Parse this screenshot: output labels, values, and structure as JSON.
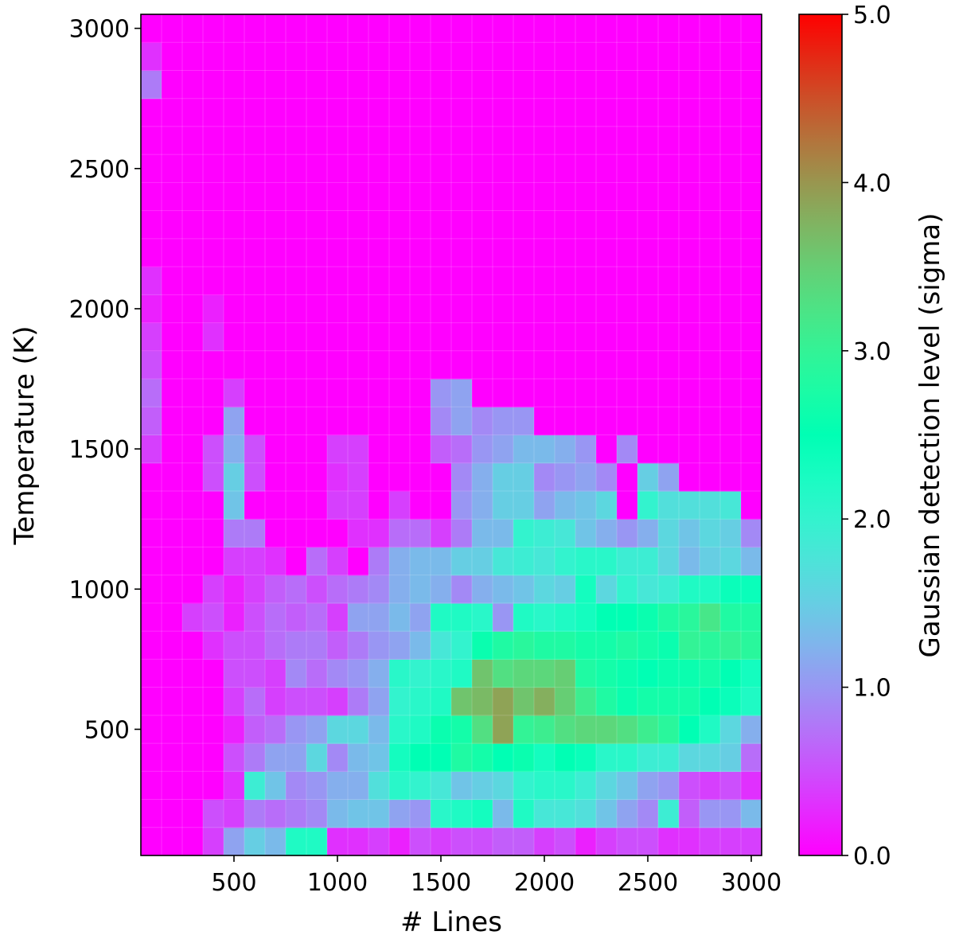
{
  "chart_data": {
    "type": "heatmap",
    "title": "",
    "xlabel": "# Lines",
    "ylabel": "Temperature (K)",
    "colorbar_label": "Gaussian detection level  (sigma)",
    "xlim": [
      50,
      3050
    ],
    "ylim": [
      50,
      3050
    ],
    "x_ticks": [
      500,
      1000,
      1500,
      2000,
      2500,
      3000
    ],
    "y_ticks": [
      500,
      1000,
      1500,
      2000,
      2500,
      3000
    ],
    "x_tick_labels": [
      "500",
      "1000",
      "1500",
      "2000",
      "2500",
      "3000"
    ],
    "y_tick_labels": [
      "500",
      "1000",
      "1500",
      "2000",
      "2500",
      "3000"
    ],
    "colorbar_range": [
      0.0,
      5.0
    ],
    "colorbar_ticks": [
      0.0,
      1.0,
      2.0,
      3.0,
      4.0,
      5.0
    ],
    "colorbar_tick_labels": [
      "0.0",
      "1.0",
      "2.0",
      "3.0",
      "4.0",
      "5.0"
    ],
    "colormap": "rainbow",
    "grid": true,
    "x_bins": [
      100,
      200,
      300,
      400,
      500,
      600,
      700,
      800,
      900,
      1000,
      1100,
      1200,
      1300,
      1400,
      1500,
      1600,
      1700,
      1800,
      1900,
      2000,
      2100,
      2200,
      2300,
      2400,
      2500,
      2600,
      2700,
      2800,
      2900,
      3000
    ],
    "y_bins": [
      100,
      200,
      300,
      400,
      500,
      600,
      700,
      800,
      900,
      1000,
      1100,
      1200,
      1300,
      1400,
      1500,
      1600,
      1700,
      1800,
      1900,
      2000,
      2100,
      2200,
      2300,
      2400,
      2500,
      2600,
      2700,
      2800,
      2900,
      3000
    ],
    "values": [
      [
        0.0,
        0.0,
        0.0,
        0.4,
        1.1,
        1.5,
        1.3,
        2.2,
        2.2,
        0.3,
        0.3,
        0.4,
        0.2,
        0.5,
        0.4,
        0.5,
        0.5,
        0.6,
        0.6,
        0.4,
        0.5,
        0.2,
        0.4,
        0.5,
        0.5,
        0.3,
        0.3,
        0.4,
        0.4,
        0.4
      ],
      [
        0.0,
        0.0,
        0.0,
        0.5,
        0.4,
        0.8,
        0.7,
        0.8,
        0.9,
        1.3,
        1.4,
        1.4,
        1.1,
        1.0,
        2.1,
        2.2,
        2.3,
        1.3,
        2.2,
        1.8,
        1.8,
        1.7,
        1.4,
        1.1,
        0.9,
        1.9,
        0.6,
        1.0,
        1.0,
        1.3
      ],
      [
        0.0,
        0.0,
        0.0,
        0.0,
        0.3,
        1.9,
        1.4,
        0.9,
        1.0,
        1.2,
        1.2,
        1.7,
        2.1,
        2.0,
        1.8,
        1.4,
        1.5,
        1.6,
        2.0,
        2.1,
        2.1,
        1.9,
        1.6,
        1.4,
        1.1,
        1.0,
        0.5,
        0.4,
        0.5,
        0.3
      ],
      [
        0.0,
        0.0,
        0.0,
        0.0,
        0.5,
        0.8,
        1.1,
        1.1,
        1.6,
        0.9,
        1.3,
        1.4,
        2.3,
        2.5,
        2.5,
        2.8,
        2.7,
        2.5,
        2.6,
        2.3,
        2.5,
        2.4,
        2.1,
        2.1,
        1.9,
        1.9,
        1.6,
        1.6,
        1.5,
        0.7
      ],
      [
        0.0,
        0.0,
        0.0,
        0.0,
        0.2,
        0.6,
        0.7,
        1.0,
        1.1,
        1.6,
        1.6,
        1.3,
        2.1,
        2.2,
        2.6,
        2.7,
        3.3,
        3.9,
        3.0,
        3.1,
        3.3,
        3.4,
        3.4,
        3.3,
        3.1,
        2.9,
        2.5,
        2.2,
        1.6,
        1.2
      ],
      [
        0.0,
        0.0,
        0.0,
        0.0,
        0.4,
        0.7,
        0.4,
        0.5,
        0.5,
        0.4,
        0.8,
        1.1,
        2.0,
        2.1,
        2.2,
        3.6,
        3.7,
        3.9,
        3.6,
        3.8,
        3.5,
        3.1,
        2.8,
        2.6,
        2.7,
        2.7,
        2.7,
        2.5,
        2.4,
        2.2
      ],
      [
        0.0,
        0.0,
        0.0,
        0.0,
        0.5,
        0.5,
        0.4,
        0.9,
        0.7,
        0.9,
        1.0,
        1.2,
        2.1,
        2.0,
        2.1,
        2.2,
        3.6,
        3.3,
        3.4,
        3.4,
        3.5,
        2.8,
        2.7,
        2.6,
        2.5,
        2.6,
        2.6,
        2.7,
        2.5,
        2.3
      ],
      [
        0.0,
        0.0,
        0.0,
        0.3,
        0.5,
        0.5,
        0.7,
        0.8,
        0.8,
        0.6,
        0.8,
        1.0,
        1.1,
        1.3,
        1.8,
        2.0,
        2.6,
        2.8,
        2.9,
        2.8,
        2.8,
        2.7,
        2.7,
        2.8,
        2.7,
        2.6,
        3.0,
        2.9,
        3.0,
        2.9
      ],
      [
        0.0,
        0.0,
        0.4,
        0.5,
        0.2,
        0.5,
        0.7,
        0.6,
        0.7,
        0.4,
        1.1,
        1.1,
        1.3,
        1.1,
        2.2,
        2.2,
        2.1,
        1.0,
        2.2,
        2.1,
        2.2,
        2.3,
        2.5,
        2.5,
        2.6,
        2.8,
        2.9,
        3.2,
        2.8,
        2.8
      ],
      [
        0.0,
        0.0,
        0.0,
        0.4,
        0.2,
        0.4,
        0.6,
        0.7,
        0.5,
        0.7,
        0.8,
        0.9,
        1.2,
        1.3,
        1.2,
        0.9,
        1.2,
        1.3,
        1.4,
        1.6,
        1.5,
        2.3,
        1.6,
        2.0,
        1.8,
        1.9,
        2.2,
        2.2,
        2.4,
        2.4
      ],
      [
        0.0,
        0.0,
        0.0,
        0.0,
        0.4,
        0.4,
        0.3,
        0.0,
        0.7,
        0.4,
        0.0,
        0.8,
        1.2,
        1.3,
        1.3,
        1.5,
        1.5,
        1.8,
        1.9,
        1.8,
        2.0,
        2.1,
        2.1,
        1.9,
        1.9,
        1.6,
        1.3,
        1.5,
        1.6,
        1.3
      ],
      [
        0.0,
        0.0,
        0.0,
        0.0,
        0.8,
        0.8,
        0.0,
        0.0,
        0.0,
        0.0,
        0.3,
        0.3,
        0.7,
        0.7,
        0.4,
        0.8,
        1.3,
        1.3,
        2.0,
        1.9,
        1.8,
        1.4,
        1.2,
        1.0,
        1.2,
        1.6,
        1.4,
        1.6,
        1.5,
        0.9
      ],
      [
        0.0,
        0.0,
        0.0,
        0.0,
        1.4,
        0.0,
        0.0,
        0.0,
        0.0,
        0.4,
        0.4,
        0.0,
        0.4,
        0.0,
        0.0,
        1.0,
        1.2,
        1.5,
        1.5,
        1.1,
        1.3,
        1.4,
        1.6,
        0.0,
        2.0,
        1.7,
        1.7,
        1.7,
        1.8,
        0.0
      ],
      [
        0.0,
        0.0,
        0.0,
        0.5,
        1.5,
        0.5,
        0.0,
        0.0,
        0.0,
        0.3,
        0.4,
        0.0,
        0.0,
        0.0,
        0.0,
        0.9,
        1.2,
        1.5,
        1.5,
        0.9,
        1.0,
        1.1,
        0.9,
        0.0,
        1.5,
        1.1,
        0.0,
        0.0,
        0.0,
        0.0
      ],
      [
        0.4,
        0.0,
        0.0,
        0.5,
        1.2,
        0.5,
        0.0,
        0.0,
        0.0,
        0.4,
        0.4,
        0.0,
        0.0,
        0.0,
        0.6,
        0.7,
        1.0,
        1.1,
        1.3,
        1.3,
        1.2,
        1.0,
        0.0,
        0.9,
        0.0,
        0.0,
        0.0,
        0.0,
        0.0,
        0.0
      ],
      [
        0.6,
        0.0,
        0.0,
        0.0,
        1.1,
        0.0,
        0.0,
        0.0,
        0.0,
        0.0,
        0.0,
        0.0,
        0.0,
        0.0,
        0.9,
        1.1,
        0.9,
        1.0,
        1.0,
        0.0,
        0.0,
        0.0,
        0.0,
        0.0,
        0.0,
        0.0,
        0.0,
        0.0,
        0.0,
        0.0
      ],
      [
        0.7,
        0.0,
        0.0,
        0.0,
        0.4,
        0.0,
        0.0,
        0.0,
        0.0,
        0.0,
        0.0,
        0.0,
        0.0,
        0.0,
        1.0,
        1.1,
        0.0,
        0.0,
        0.0,
        0.0,
        0.0,
        0.0,
        0.0,
        0.0,
        0.0,
        0.0,
        0.0,
        0.0,
        0.0,
        0.0
      ],
      [
        0.5,
        0.0,
        0.0,
        0.0,
        0.0,
        0.0,
        0.0,
        0.0,
        0.0,
        0.0,
        0.0,
        0.0,
        0.0,
        0.0,
        0.0,
        0.0,
        0.0,
        0.0,
        0.0,
        0.0,
        0.0,
        0.0,
        0.0,
        0.0,
        0.0,
        0.0,
        0.0,
        0.0,
        0.0,
        0.0
      ],
      [
        0.4,
        0.0,
        0.0,
        0.3,
        0.0,
        0.0,
        0.0,
        0.0,
        0.0,
        0.0,
        0.0,
        0.0,
        0.0,
        0.0,
        0.0,
        0.0,
        0.0,
        0.0,
        0.0,
        0.0,
        0.0,
        0.0,
        0.0,
        0.0,
        0.0,
        0.0,
        0.0,
        0.0,
        0.0,
        0.0
      ],
      [
        0.2,
        0.0,
        0.0,
        0.2,
        0.0,
        0.0,
        0.0,
        0.0,
        0.0,
        0.0,
        0.0,
        0.0,
        0.0,
        0.0,
        0.0,
        0.0,
        0.0,
        0.0,
        0.0,
        0.0,
        0.0,
        0.0,
        0.0,
        0.0,
        0.0,
        0.0,
        0.0,
        0.0,
        0.0,
        0.0
      ],
      [
        0.3,
        0.0,
        0.0,
        0.0,
        0.0,
        0.0,
        0.0,
        0.0,
        0.0,
        0.0,
        0.0,
        0.0,
        0.0,
        0.0,
        0.0,
        0.0,
        0.0,
        0.0,
        0.0,
        0.0,
        0.0,
        0.0,
        0.0,
        0.0,
        0.0,
        0.0,
        0.0,
        0.0,
        0.0,
        0.0
      ],
      [
        0.0,
        0.0,
        0.0,
        0.0,
        0.0,
        0.0,
        0.0,
        0.0,
        0.0,
        0.0,
        0.0,
        0.0,
        0.0,
        0.0,
        0.0,
        0.0,
        0.0,
        0.0,
        0.0,
        0.0,
        0.0,
        0.0,
        0.0,
        0.0,
        0.0,
        0.0,
        0.0,
        0.0,
        0.0,
        0.0
      ],
      [
        0.0,
        0.0,
        0.0,
        0.0,
        0.0,
        0.0,
        0.0,
        0.0,
        0.0,
        0.0,
        0.0,
        0.0,
        0.0,
        0.0,
        0.0,
        0.0,
        0.0,
        0.0,
        0.0,
        0.0,
        0.0,
        0.0,
        0.0,
        0.0,
        0.0,
        0.0,
        0.0,
        0.0,
        0.0,
        0.0
      ],
      [
        0.0,
        0.0,
        0.0,
        0.0,
        0.0,
        0.0,
        0.0,
        0.0,
        0.0,
        0.0,
        0.0,
        0.0,
        0.0,
        0.0,
        0.0,
        0.0,
        0.0,
        0.0,
        0.0,
        0.0,
        0.0,
        0.0,
        0.0,
        0.0,
        0.0,
        0.0,
        0.0,
        0.0,
        0.0,
        0.0
      ],
      [
        0.0,
        0.0,
        0.0,
        0.0,
        0.0,
        0.0,
        0.0,
        0.0,
        0.0,
        0.0,
        0.0,
        0.0,
        0.0,
        0.0,
        0.0,
        0.0,
        0.0,
        0.0,
        0.0,
        0.0,
        0.0,
        0.0,
        0.0,
        0.0,
        0.0,
        0.0,
        0.0,
        0.0,
        0.0,
        0.0
      ],
      [
        0.0,
        0.0,
        0.0,
        0.0,
        0.0,
        0.0,
        0.0,
        0.0,
        0.0,
        0.0,
        0.0,
        0.0,
        0.0,
        0.0,
        0.0,
        0.0,
        0.0,
        0.0,
        0.0,
        0.0,
        0.0,
        0.0,
        0.0,
        0.0,
        0.0,
        0.0,
        0.0,
        0.0,
        0.0,
        0.0
      ],
      [
        0.0,
        0.0,
        0.0,
        0.0,
        0.0,
        0.0,
        0.0,
        0.0,
        0.0,
        0.0,
        0.0,
        0.0,
        0.0,
        0.0,
        0.0,
        0.0,
        0.0,
        0.0,
        0.0,
        0.0,
        0.0,
        0.0,
        0.0,
        0.0,
        0.0,
        0.0,
        0.0,
        0.0,
        0.0,
        0.0
      ],
      [
        0.8,
        0.0,
        0.0,
        0.0,
        0.0,
        0.0,
        0.0,
        0.0,
        0.0,
        0.0,
        0.0,
        0.0,
        0.0,
        0.0,
        0.0,
        0.0,
        0.0,
        0.0,
        0.0,
        0.0,
        0.0,
        0.0,
        0.0,
        0.0,
        0.0,
        0.0,
        0.0,
        0.0,
        0.0,
        0.0
      ],
      [
        0.3,
        0.0,
        0.0,
        0.0,
        0.0,
        0.0,
        0.0,
        0.0,
        0.0,
        0.0,
        0.0,
        0.0,
        0.0,
        0.0,
        0.0,
        0.0,
        0.0,
        0.0,
        0.0,
        0.0,
        0.0,
        0.0,
        0.0,
        0.0,
        0.0,
        0.0,
        0.0,
        0.0,
        0.0,
        0.0
      ],
      [
        0.0,
        0.0,
        0.0,
        0.0,
        0.0,
        0.0,
        0.0,
        0.0,
        0.0,
        0.0,
        0.0,
        0.0,
        0.0,
        0.0,
        0.0,
        0.0,
        0.0,
        0.0,
        0.0,
        0.0,
        0.0,
        0.0,
        0.0,
        0.0,
        0.0,
        0.0,
        0.0,
        0.0,
        0.0,
        0.0
      ]
    ]
  }
}
